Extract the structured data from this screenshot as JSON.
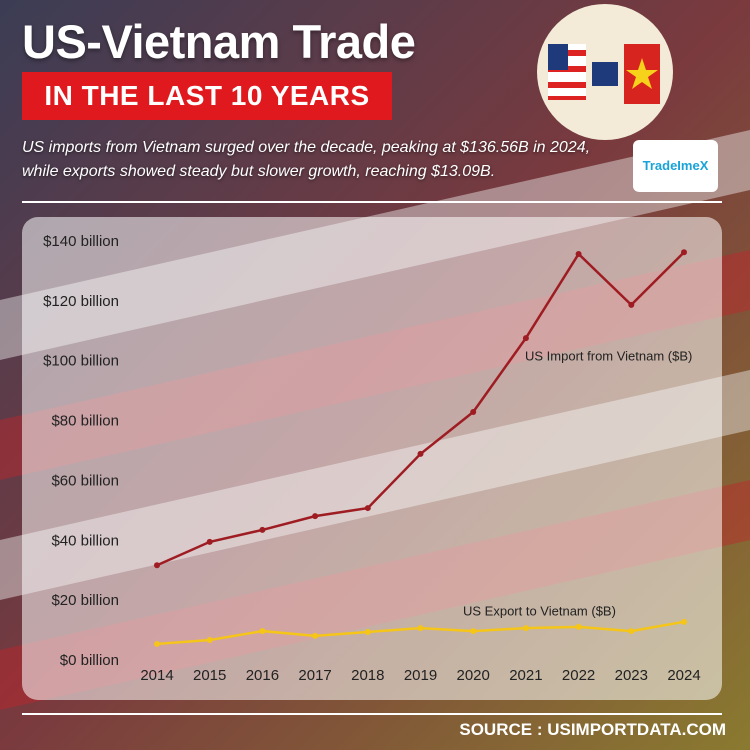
{
  "header": {
    "title": "US-Vietnam Trade",
    "banner": "IN THE LAST 10 YEARS",
    "subtitle": "US imports from Vietnam surged over the decade, peaking at $136.56B in 2024, while exports showed steady but slower growth, reaching $13.09B.",
    "logo": "TradeImeX"
  },
  "chart_data": {
    "type": "line",
    "categories": [
      "2014",
      "2015",
      "2016",
      "2017",
      "2018",
      "2019",
      "2020",
      "2021",
      "2022",
      "2023",
      "2024"
    ],
    "series": [
      {
        "name": "US Import from Vietnam ($B)",
        "color": "#9e1c22",
        "values": [
          32,
          39.8,
          43.8,
          48.4,
          51.1,
          69.2,
          83.2,
          107.9,
          136,
          119,
          136.56
        ]
      },
      {
        "name": "US Export to Vietnam ($B)",
        "color": "#f5c518",
        "values": [
          5.7,
          7,
          10,
          8.4,
          9.7,
          11,
          10,
          11,
          11.4,
          10,
          13.09
        ]
      }
    ],
    "ylim": [
      0,
      140
    ],
    "yticks": [
      {
        "value": 0,
        "label": "$0 billion"
      },
      {
        "value": 20,
        "label": "$20 billion"
      },
      {
        "value": 40,
        "label": "$40 billion"
      },
      {
        "value": 60,
        "label": "$60 billion"
      },
      {
        "value": 80,
        "label": "$80 billion"
      },
      {
        "value": 100,
        "label": "$100 billion"
      },
      {
        "value": 120,
        "label": "$120 billion"
      },
      {
        "value": 140,
        "label": "$140 billion"
      }
    ],
    "grid": false
  },
  "footer": {
    "source": "SOURCE : USIMPORTDATA.COM"
  }
}
